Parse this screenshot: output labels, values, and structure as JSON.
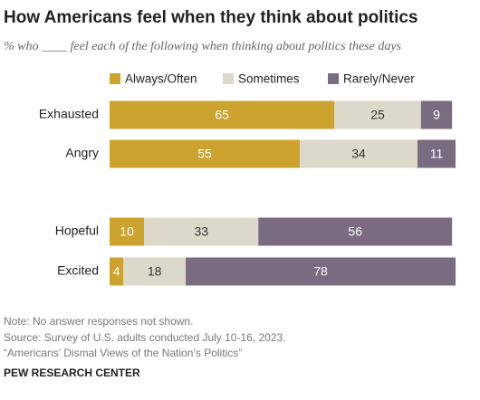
{
  "chart_data": {
    "type": "stacked_bar_horizontal",
    "title": "How Americans feel when they think about politics",
    "subtitle": "% who ____ feel each of the following when thinking about politics these days",
    "categories": [
      "Exhausted",
      "Angry",
      "Hopeful",
      "Excited"
    ],
    "series": [
      {
        "name": "Always/Often",
        "color": "#cda32f",
        "values": [
          65,
          55,
          10,
          4
        ]
      },
      {
        "name": "Sometimes",
        "color": "#dcd9ca",
        "values": [
          25,
          34,
          33,
          18
        ]
      },
      {
        "name": "Rarely/Never",
        "color": "#7a6b80",
        "values": [
          9,
          11,
          56,
          78
        ]
      }
    ],
    "xlim": [
      0,
      100
    ],
    "notes": [
      "Note: No answer responses not shown.",
      "Source: Survey of U.S. adults conducted July 10-16, 2023.",
      "“Americans’ Dismal Views of the Nation’s Politics”"
    ],
    "source_org": "PEW RESEARCH CENTER"
  }
}
